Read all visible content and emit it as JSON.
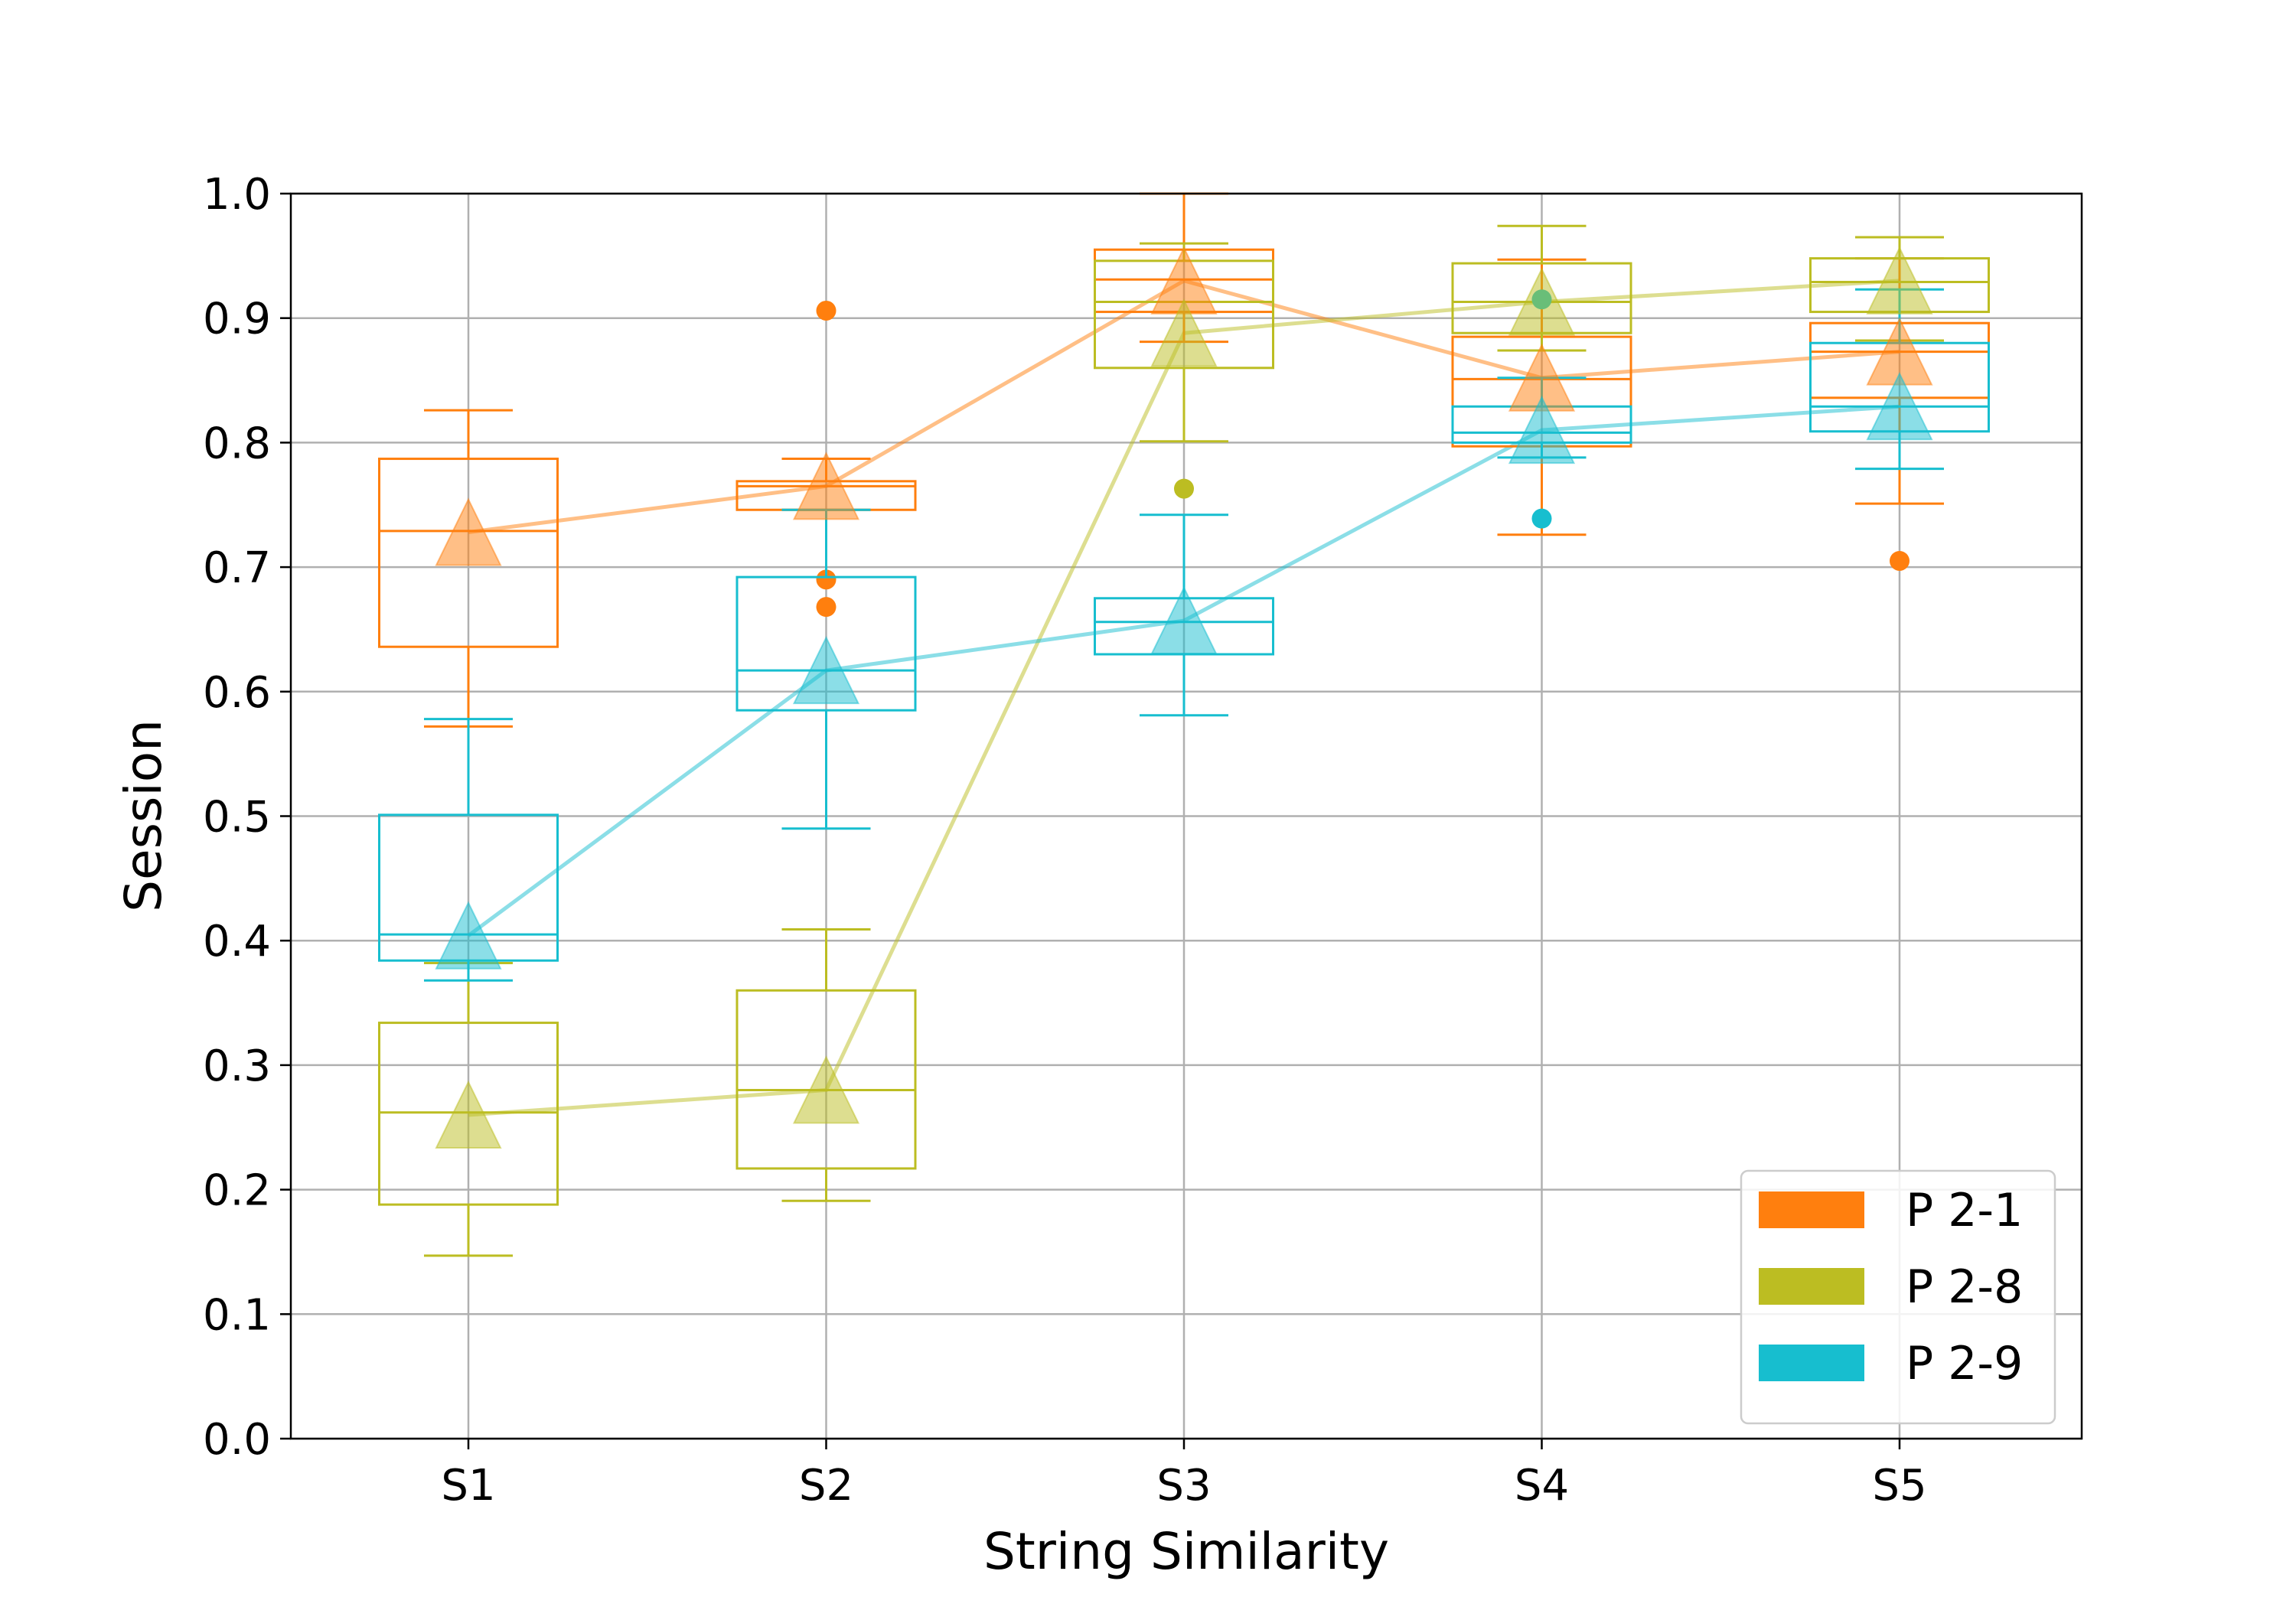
{
  "chart_data": {
    "type": "box",
    "xlabel": "String Similarity",
    "ylabel": "Session",
    "ylim": [
      0.0,
      1.0
    ],
    "yticks": [
      "0.0",
      "0.1",
      "0.2",
      "0.3",
      "0.4",
      "0.5",
      "0.6",
      "0.7",
      "0.8",
      "0.9",
      "1.0"
    ],
    "categories": [
      "S1",
      "S2",
      "S3",
      "S4",
      "S5"
    ],
    "grid": true,
    "legend_position": "bottom-right",
    "series": [
      {
        "name": "P 2-1",
        "color": "#ff7f0e",
        "means": [
          0.728,
          0.765,
          0.93,
          0.852,
          0.873
        ],
        "boxes": [
          {
            "whisker_low": 0.572,
            "q1": 0.636,
            "median": 0.729,
            "q3": 0.787,
            "whisker_high": 0.826,
            "outliers": []
          },
          {
            "whisker_low": 0.746,
            "q1": 0.746,
            "median": 0.765,
            "q3": 0.769,
            "whisker_high": 0.787,
            "outliers": [
              0.906,
              0.69,
              0.668
            ]
          },
          {
            "whisker_low": 0.881,
            "q1": 0.905,
            "median": 0.931,
            "q3": 0.955,
            "whisker_high": 1.0,
            "outliers": []
          },
          {
            "whisker_low": 0.726,
            "q1": 0.797,
            "median": 0.851,
            "q3": 0.885,
            "whisker_high": 0.947,
            "outliers": []
          },
          {
            "whisker_low": 0.751,
            "q1": 0.836,
            "median": 0.873,
            "q3": 0.896,
            "whisker_high": 0.948,
            "outliers": [
              0.705
            ]
          }
        ]
      },
      {
        "name": "P 2-8",
        "color": "#bcbd22",
        "means": [
          0.26,
          0.28,
          0.888,
          0.913,
          0.93
        ],
        "boxes": [
          {
            "whisker_low": 0.147,
            "q1": 0.188,
            "median": 0.262,
            "q3": 0.334,
            "whisker_high": 0.382,
            "outliers": []
          },
          {
            "whisker_low": 0.191,
            "q1": 0.217,
            "median": 0.28,
            "q3": 0.36,
            "whisker_high": 0.409,
            "outliers": []
          },
          {
            "whisker_low": 0.801,
            "q1": 0.86,
            "median": 0.913,
            "q3": 0.946,
            "whisker_high": 0.96,
            "outliers": [
              0.763
            ]
          },
          {
            "whisker_low": 0.874,
            "q1": 0.888,
            "median": 0.913,
            "q3": 0.944,
            "whisker_high": 0.974,
            "outliers": []
          },
          {
            "whisker_low": 0.882,
            "q1": 0.905,
            "median": 0.929,
            "q3": 0.948,
            "whisker_high": 0.965,
            "outliers": []
          }
        ]
      },
      {
        "name": "P 2-9",
        "color": "#17becf",
        "means": [
          0.404,
          0.617,
          0.657,
          0.81,
          0.829
        ],
        "boxes": [
          {
            "whisker_low": 0.368,
            "q1": 0.384,
            "median": 0.405,
            "q3": 0.501,
            "whisker_high": 0.578,
            "outliers": []
          },
          {
            "whisker_low": 0.49,
            "q1": 0.585,
            "median": 0.617,
            "q3": 0.692,
            "whisker_high": 0.746,
            "outliers": []
          },
          {
            "whisker_low": 0.581,
            "q1": 0.63,
            "median": 0.656,
            "q3": 0.675,
            "whisker_high": 0.742,
            "outliers": []
          },
          {
            "whisker_low": 0.788,
            "q1": 0.8,
            "median": 0.808,
            "q3": 0.829,
            "whisker_high": 0.852,
            "outliers": [
              0.739,
              0.915
            ]
          },
          {
            "whisker_low": 0.779,
            "q1": 0.809,
            "median": 0.829,
            "q3": 0.88,
            "whisker_high": 0.923,
            "outliers": []
          }
        ]
      }
    ]
  }
}
